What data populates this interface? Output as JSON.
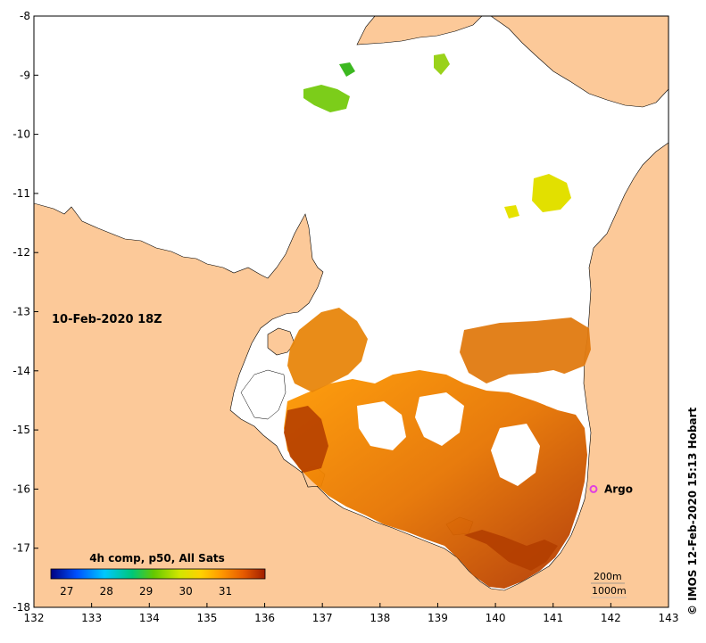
{
  "map": {
    "timestamp": "10-Feb-2020 18Z",
    "credit": "© IMOS 12-Feb-2020 15:13 Hobart",
    "lon_ticks": [
      132,
      133,
      134,
      135,
      136,
      137,
      138,
      139,
      140,
      141,
      142,
      143
    ],
    "lat_ticks": [
      -8,
      -9,
      -10,
      -11,
      -12,
      -13,
      -14,
      -15,
      -16,
      -17,
      -18
    ],
    "lon_range": [
      132,
      143
    ],
    "lat_range": [
      -18,
      -8
    ],
    "land_color": "#fcc999",
    "sea_color": "#ffffff"
  },
  "colorbar": {
    "title": "4h comp, p50, All Sats",
    "ticks": [
      "27",
      "28",
      "29",
      "30",
      "31"
    ],
    "range": [
      26.6,
      32
    ],
    "colors": [
      "#000080",
      "#0050ff",
      "#00c8ff",
      "#00c878",
      "#64c800",
      "#d2e600",
      "#ffd200",
      "#ff9600",
      "#e65a00",
      "#a01e00"
    ]
  },
  "argo": {
    "label": "Argo",
    "lon": 141.7,
    "lat": -16.0,
    "color": "#e040e0"
  },
  "depth_legend": {
    "contour_200": "200m",
    "contour_1000": "1000m"
  }
}
